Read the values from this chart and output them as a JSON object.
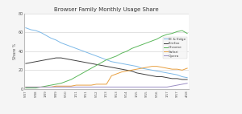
{
  "title": "Browser Family Monthly Usage Share",
  "ylabel": "Share %",
  "x_labels": [
    "5/07",
    "1/08",
    "5/08",
    "9/08",
    "1/09",
    "5/09",
    "9/09",
    "1/10",
    "5/10",
    "9/10",
    "1/11",
    "5/11",
    "9/11",
    "1/12",
    "5/12",
    "9/12",
    "1/13",
    "5/13",
    "9/13",
    "1/14",
    "5/14",
    "9/14",
    "1/15",
    "5/15",
    "9/15",
    "1/16",
    "5/16",
    "9/16",
    "1/17",
    "5/17",
    "9/17",
    "1/18",
    "4/18"
  ],
  "series": {
    "IE & Edge": {
      "color": "#7db9e8",
      "values": [
        65,
        63,
        62,
        60,
        57,
        54,
        52,
        49,
        47,
        45,
        43,
        41,
        39,
        37,
        35,
        33,
        31,
        29,
        28,
        27,
        26,
        25,
        24,
        22,
        21,
        20,
        19,
        18,
        17,
        16,
        15,
        13,
        12
      ]
    },
    "Firefox": {
      "color": "#404040",
      "values": [
        27,
        28,
        29,
        30,
        31,
        32,
        33,
        33,
        32,
        31,
        30,
        29,
        28,
        27,
        26,
        25,
        24,
        23,
        22,
        21,
        20,
        19,
        17,
        16,
        15,
        14,
        13,
        13,
        12,
        11,
        11,
        10,
        10
      ]
    },
    "Chrome": {
      "color": "#5cb85c",
      "values": [
        1,
        1,
        1,
        2,
        3,
        4,
        5,
        6,
        8,
        10,
        13,
        16,
        19,
        22,
        25,
        28,
        31,
        33,
        35,
        38,
        40,
        43,
        45,
        47,
        49,
        51,
        53,
        56,
        58,
        59,
        61,
        62,
        59
      ]
    },
    "Safari": {
      "color": "#e8a040",
      "values": [
        2,
        2,
        2,
        2,
        2,
        2,
        3,
        3,
        3,
        3,
        4,
        4,
        4,
        4,
        5,
        5,
        5,
        14,
        16,
        18,
        19,
        20,
        21,
        22,
        23,
        24,
        24,
        23,
        22,
        21,
        21,
        20,
        22
      ]
    },
    "Opera": {
      "color": "#9b8ec4",
      "values": [
        2,
        2,
        2,
        2,
        2,
        2,
        2,
        2,
        2,
        2,
        2,
        2,
        2,
        2,
        2,
        2,
        2,
        2,
        2,
        2,
        2,
        2,
        2,
        2,
        2,
        2,
        2,
        2,
        2,
        3,
        4,
        5,
        6
      ]
    }
  },
  "ylim": [
    0,
    80
  ],
  "yticks": [
    0,
    20,
    40,
    60,
    80
  ],
  "bg_color": "#f5f5f5",
  "grid_color": "#cccccc",
  "plot_bg": "#ffffff"
}
